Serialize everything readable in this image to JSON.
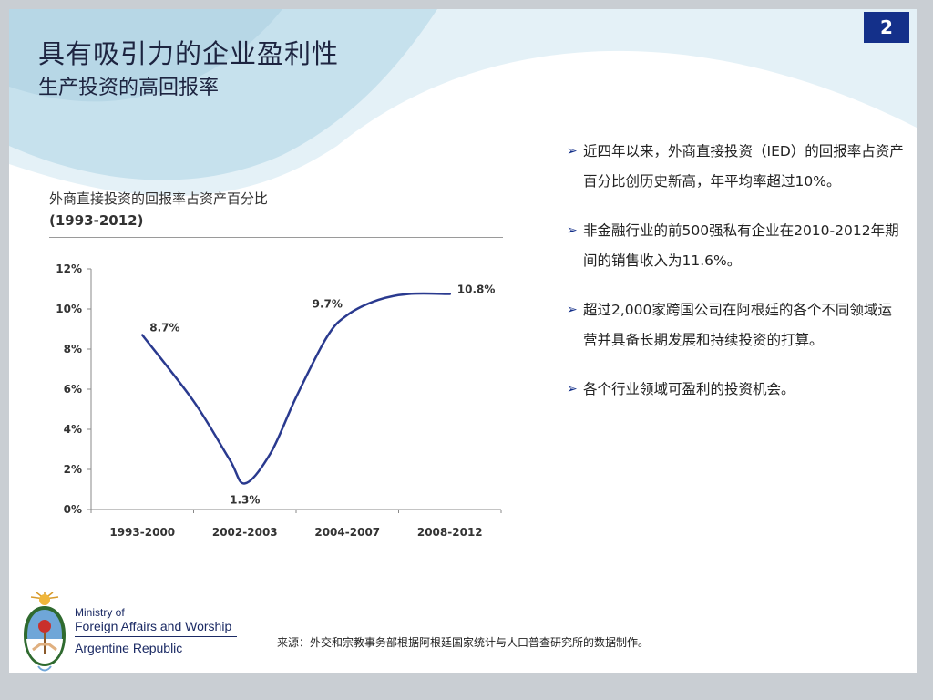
{
  "page": {
    "number": "2",
    "title": "具有吸引力的企业盈利性",
    "subtitle": "生产投资的高回报率"
  },
  "chart_caption": {
    "line1": "外商直接投资的回报率占资产百分比",
    "line2": "(1993-2012)"
  },
  "chart_data": {
    "type": "line",
    "title": "外商直接投资的回报率占资产百分比 (1993-2012)",
    "categories": [
      "1993-2000",
      "2002-2003",
      "2004-2007",
      "2008-2012"
    ],
    "y_ticks": [
      "0%",
      "2%",
      "4%",
      "6%",
      "8%",
      "10%",
      "12%"
    ],
    "ylim": [
      0,
      12
    ],
    "series": [
      {
        "points": [
          {
            "x": 0.0,
            "y": 8.7
          },
          {
            "x": 0.5,
            "y": 5.4
          },
          {
            "x": 0.85,
            "y": 2.5
          },
          {
            "x": 1.0,
            "y": 1.3
          },
          {
            "x": 1.25,
            "y": 2.8
          },
          {
            "x": 1.5,
            "y": 5.6
          },
          {
            "x": 1.8,
            "y": 8.6
          },
          {
            "x": 2.0,
            "y": 9.7
          },
          {
            "x": 2.3,
            "y": 10.45
          },
          {
            "x": 2.6,
            "y": 10.75
          },
          {
            "x": 3.0,
            "y": 10.75
          }
        ],
        "color": "#2a3a8f"
      }
    ],
    "data_labels": [
      {
        "text": "8.7%",
        "x": 0,
        "y": 8.7
      },
      {
        "text": "1.3%",
        "x": 1,
        "y": 1.3
      },
      {
        "text": "9.7%",
        "x": 2,
        "y": 9.7
      },
      {
        "text": "10.8%",
        "x": 3,
        "y": 10.8
      }
    ],
    "grid": false,
    "legend": "none"
  },
  "bullets": [
    "近四年以来，外商直接投资（IED）的回报率占资产百分比创历史新高，年平均率超过10%。",
    "非金融行业的前500强私有企业在2010-2012年期间的销售收入为11.6%。",
    "超过2,000家跨国公司在阿根廷的各个不同领域运营并具备长期发展和持续投资的打算。",
    "各个行业领域可盈利的投资机会。"
  ],
  "logo": {
    "line1": "Ministry of",
    "line2": "Foreign Affairs and Worship",
    "line3": "Argentine Republic"
  },
  "source_note": "来源：外交和宗教事务部根据阿根廷国家统计与人口普查研究所的数据制作。",
  "colors": {
    "accent": "#14308a",
    "line": "#2a3a8f",
    "decor_light": "#e6f2f8",
    "decor_mid": "#c9e3ef"
  }
}
